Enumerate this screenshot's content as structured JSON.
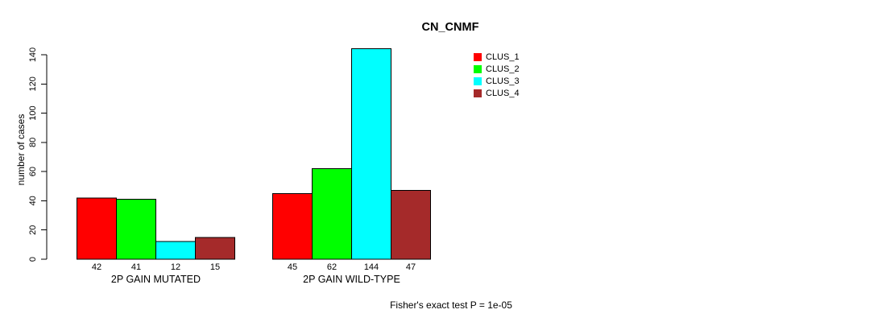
{
  "chart_data": {
    "type": "bar",
    "title": "CN_CNMF",
    "ylabel": "number of cases",
    "xlabel": "",
    "categories": [
      "2P GAIN MUTATED",
      "2P GAIN WILD-TYPE"
    ],
    "series": [
      {
        "name": "CLUS_1",
        "color": "#FF0000",
        "values": [
          42,
          45
        ]
      },
      {
        "name": "CLUS_2",
        "color": "#00FF00",
        "values": [
          41,
          62
        ]
      },
      {
        "name": "CLUS_3",
        "color": "#00FFFF",
        "values": [
          12,
          144
        ]
      },
      {
        "name": "CLUS_4",
        "color": "#A52A2A",
        "values": [
          15,
          47
        ]
      }
    ],
    "bar_value_labels": [
      [
        "42",
        "41",
        "12",
        "15"
      ],
      [
        "45",
        "62",
        "144",
        "47"
      ]
    ],
    "yticks": [
      0,
      20,
      40,
      60,
      80,
      100,
      120,
      140
    ],
    "ylim": [
      0,
      144
    ],
    "grid": false,
    "legend_position": "top-right",
    "bar_border_color": "#000000",
    "text_color": "#000000",
    "background_color": "#FFFFFF",
    "annotation": "Fisher's exact test P = 1e-05"
  }
}
